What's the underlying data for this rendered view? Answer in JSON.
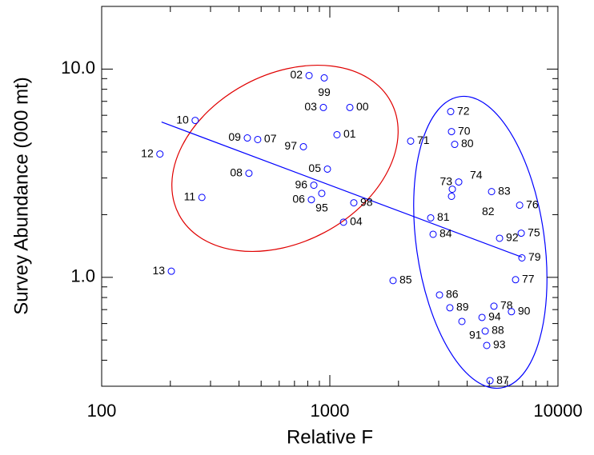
{
  "chart_data": {
    "type": "scatter",
    "x_label": "Relative F",
    "y_label": "Survey Abundance (000 mt)",
    "xscale": "log",
    "yscale": "log",
    "xlim": [
      100,
      10000
    ],
    "xticks": [
      100,
      1000,
      10000
    ],
    "ylim": [
      0.3,
      20
    ],
    "yticks": [
      {
        "value": 1,
        "label": "1.0"
      },
      {
        "value": 10,
        "label": "10.0"
      }
    ],
    "marker_color": "#0000ff",
    "point_labels": [
      "02",
      "99",
      "03",
      "00",
      "72",
      "10",
      "70",
      "01",
      "09",
      "07",
      "71",
      "80",
      "97",
      "12",
      "05",
      "08",
      "73",
      "74",
      "82",
      "96",
      "83",
      "11",
      "06",
      "95",
      "98",
      "76",
      "81",
      "04",
      "75",
      "84",
      "92",
      "79",
      "13",
      "85",
      "77",
      "86",
      "78",
      "89",
      "90",
      "94",
      "91",
      "88",
      "93",
      "87"
    ],
    "x": [
      811,
      945,
      937,
      1224,
      3387,
      257,
      3415,
      1075,
      435,
      483,
      2261,
      3526,
      766,
      180,
      976,
      442,
      3673,
      3443,
      3415,
      851,
      5117,
      275,
      830,
      922,
      1274,
      6792,
      2768,
      1148,
      6900,
      2836,
      5546,
      6950,
      202,
      1893,
      6518,
      3025,
      5240,
      3359,
      6252,
      4645,
      3793,
      4797,
      4873,
      5035
    ],
    "values": [
      9.31,
      9.07,
      6.54,
      6.54,
      6.25,
      5.67,
      5.01,
      4.84,
      4.67,
      4.59,
      4.51,
      4.35,
      4.24,
      3.91,
      3.31,
      3.16,
      2.87,
      2.65,
      2.45,
      2.77,
      2.58,
      2.42,
      2.36,
      2.53,
      2.28,
      2.22,
      1.93,
      1.84,
      1.63,
      1.61,
      1.54,
      1.24,
      1.07,
      0.965,
      0.974,
      0.823,
      0.727,
      0.714,
      0.684,
      0.642,
      0.614,
      0.552,
      0.471,
      0.319
    ],
    "fit_line": {
      "x": [
        183,
        6950
      ],
      "y": [
        5.57,
        1.25
      ],
      "color": "#0000ff"
    }
  }
}
